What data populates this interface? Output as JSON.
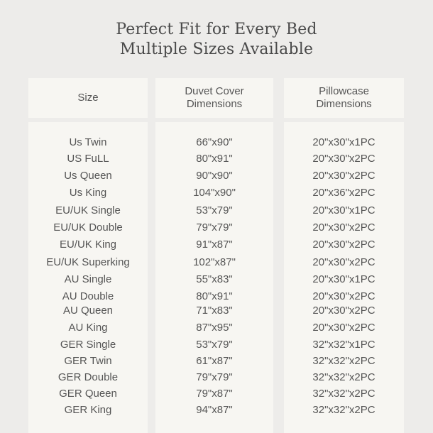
{
  "title": {
    "line1": "Perfect Fit for Every Bed",
    "line2": "Multiple Sizes Available"
  },
  "headers": {
    "size": "Size",
    "duvet": "Duvet Cover\nDimensions",
    "pillow": "Pillowcase\nDimensions"
  },
  "rows": [
    {
      "size": "Us Twin",
      "duvet": "66\"x90\"",
      "pillow": "20\"x30\"x1PC"
    },
    {
      "size": "US FuLL",
      "duvet": "80\"x91\"",
      "pillow": "20\"x30\"x2PC"
    },
    {
      "size": "Us Queen",
      "duvet": "90\"x90\"",
      "pillow": "20\"x30\"x2PC"
    },
    {
      "size": "Us King",
      "duvet": "104\"x90\"",
      "pillow": "20\"x36\"x2PC"
    },
    {
      "size": "EU/UK Single",
      "duvet": "53\"x79\"",
      "pillow": "20\"x30\"x1PC"
    },
    {
      "size": "EU/UK Double",
      "duvet": "79\"x79\"",
      "pillow": "20\"x30\"x2PC"
    },
    {
      "size": "EU/UK King",
      "duvet": "91\"x87\"",
      "pillow": "20\"x30\"x2PC"
    },
    {
      "size": "EU/UK Superking",
      "duvet": "102\"x87\"",
      "pillow": "20\"x30\"x2PC"
    },
    {
      "size": "AU Single",
      "duvet": "55\"x83\"",
      "pillow": "20\"x30\"x1PC"
    },
    {
      "size": "AU Double",
      "duvet": "80\"x91\"",
      "pillow": "20\"x30\"x2PC"
    },
    {
      "size": "AU Queen",
      "duvet": "71\"x83\"",
      "pillow": "20\"x30\"x2PC"
    },
    {
      "size": "AU King",
      "duvet": "87\"x95\"",
      "pillow": "20\"x30\"x2PC"
    },
    {
      "size": "GER Single",
      "duvet": "53\"x79\"",
      "pillow": "32\"x32\"x1PC"
    },
    {
      "size": "GER Twin",
      "duvet": "61\"x87\"",
      "pillow": "32\"x32\"x2PC"
    },
    {
      "size": "GER Double",
      "duvet": "79\"x79\"",
      "pillow": "32\"x32\"x2PC"
    },
    {
      "size": "GER Queen",
      "duvet": "79\"x87\"",
      "pillow": "32\"x32\"x2PC"
    },
    {
      "size": "GER King",
      "duvet": "94\"x87\"",
      "pillow": "32\"x32\"x2PC"
    }
  ]
}
